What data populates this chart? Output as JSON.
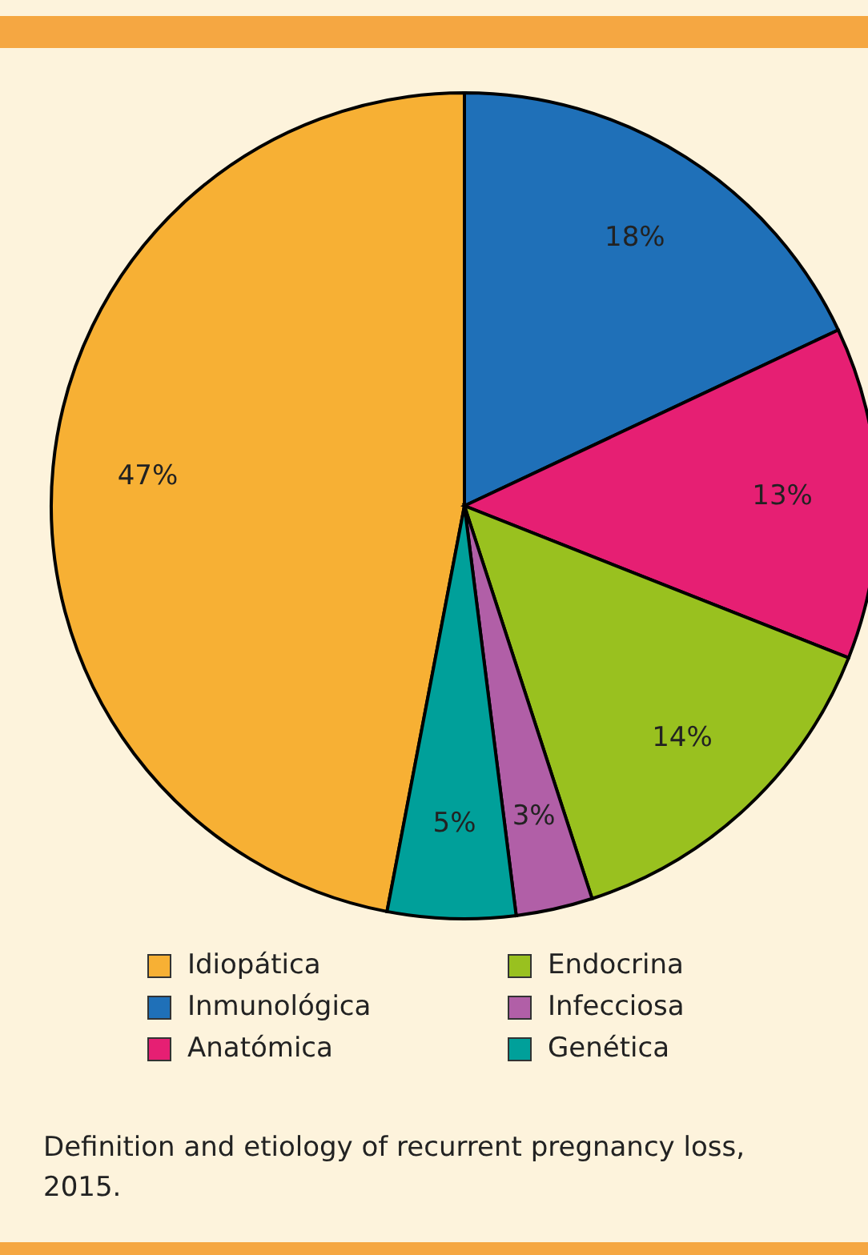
{
  "chart_data": {
    "type": "pie",
    "categories": [
      "Idiopática",
      "Inmunológica",
      "Anatómica",
      "Endocrina",
      "Infecciosa",
      "Genética"
    ],
    "values": [
      47,
      18,
      13,
      14,
      3,
      5
    ],
    "value_labels": [
      "47%",
      "18%",
      "13%",
      "14%",
      "3%",
      "5%"
    ],
    "colors": [
      "#f7b034",
      "#1f70b8",
      "#e61f73",
      "#99c11f",
      "#b15fa7",
      "#00a09a"
    ],
    "legend": "bottom",
    "annotations": [
      "Definition and etiology of recurrent pregnancy loss, 2015."
    ]
  }
}
